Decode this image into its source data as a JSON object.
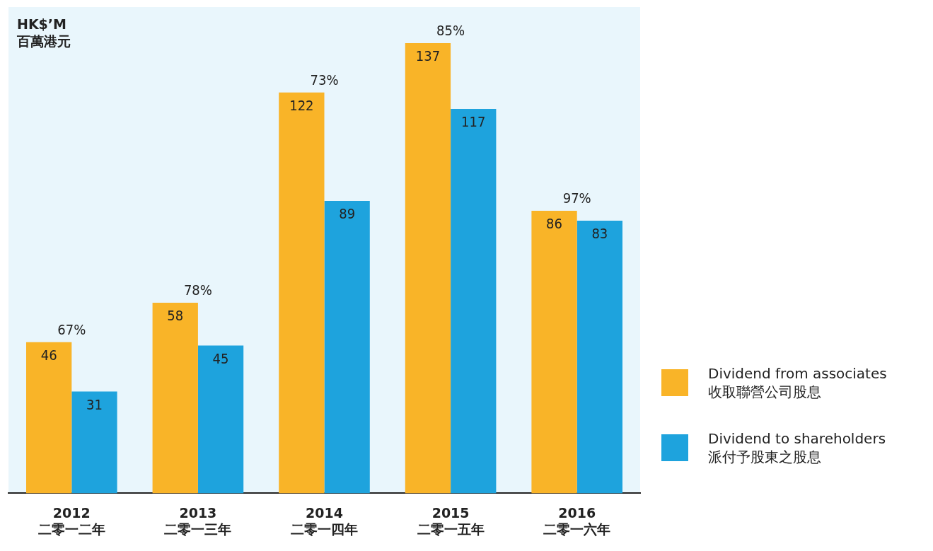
{
  "chart_data": {
    "type": "bar",
    "ylabel": "HK$’M\n百萬港元",
    "categories": [
      "2012\n二零一二年",
      "2013\n二零一三年",
      "2014\n二零一四年",
      "2015\n二零一五年",
      "2016\n二零一六年"
    ],
    "series": [
      {
        "name": "Dividend from associates\n收取聯營公司股息",
        "color": "#f9b428",
        "values": [
          46,
          58,
          122,
          137,
          86
        ]
      },
      {
        "name": "Dividend to shareholders\n派付予股東之股息",
        "color": "#1ea3dd",
        "values": [
          31,
          45,
          89,
          117,
          83
        ]
      }
    ],
    "annotations": [
      {
        "text": "67%",
        "x": "2012\n二零一二年",
        "y": 46
      },
      {
        "text": "78%",
        "x": "2013\n二零一三年",
        "y": 58
      },
      {
        "text": "73%",
        "x": "2014\n二零一四年",
        "y": 122
      },
      {
        "text": "85%",
        "x": "2015\n二零一五年",
        "y": 137
      },
      {
        "text": "97%",
        "x": "2016\n二零一六年",
        "y": 86
      }
    ],
    "data_labels": true,
    "grid": false,
    "legend": "bottom right",
    "tick_labels": "x"
  }
}
